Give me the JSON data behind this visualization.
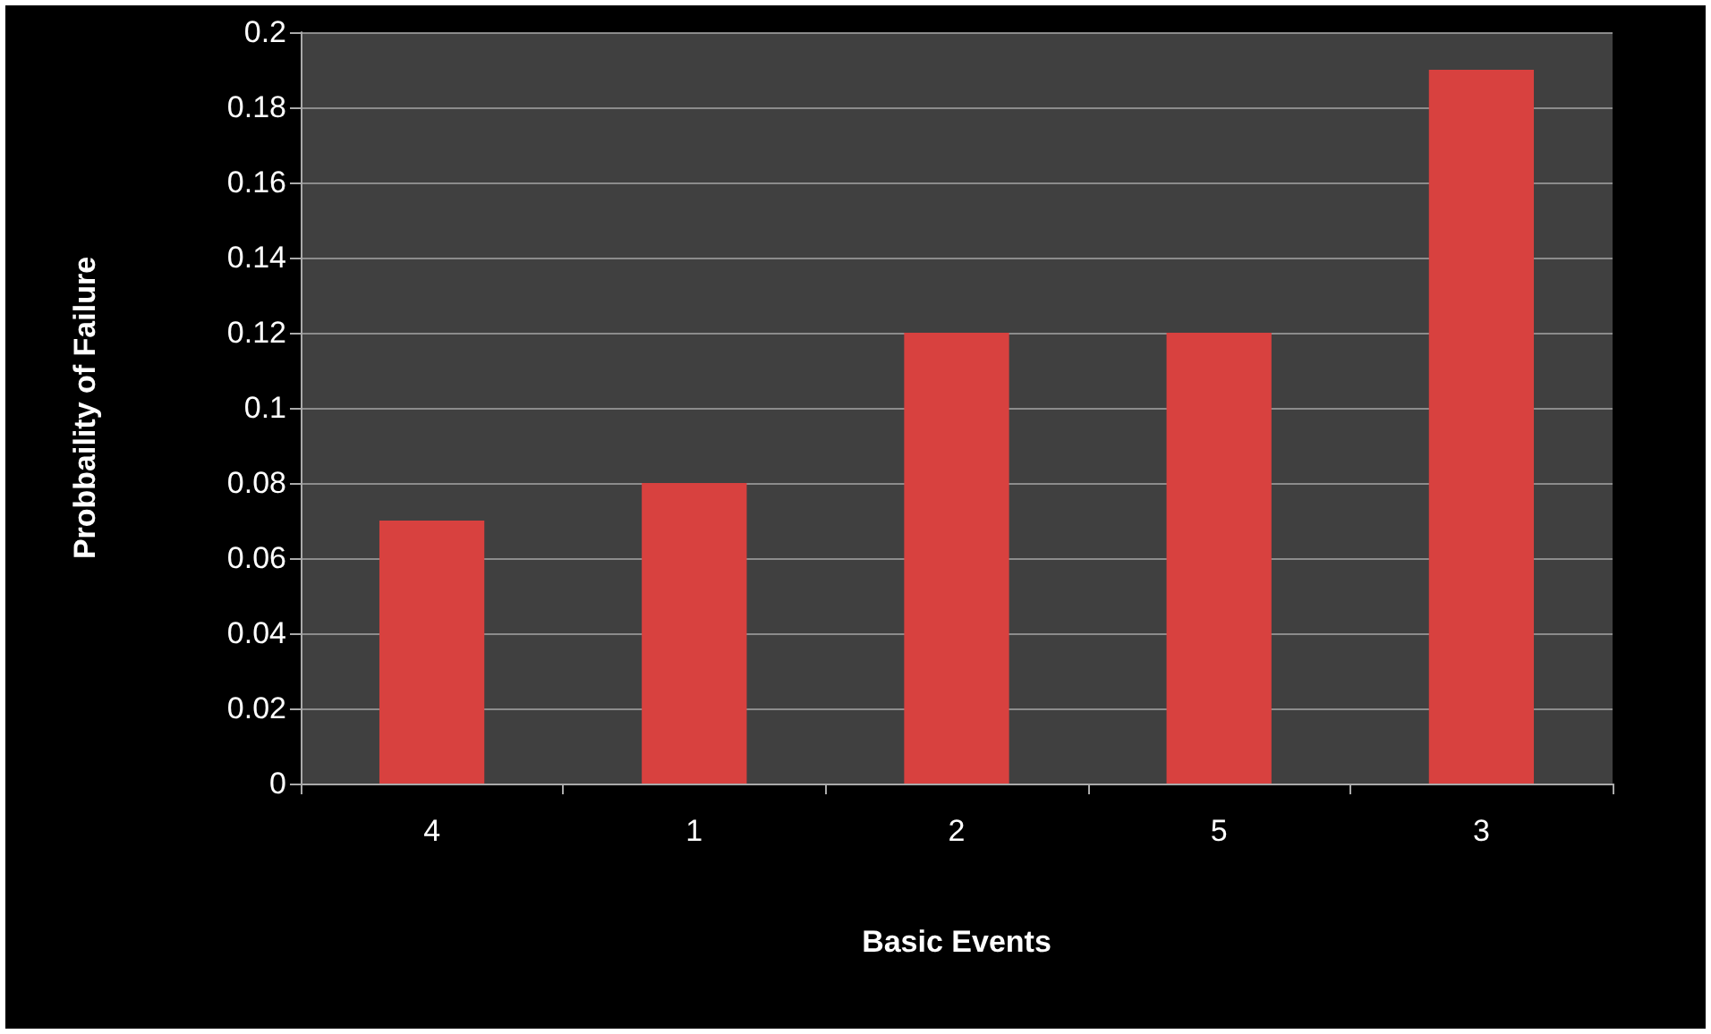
{
  "chart_data": {
    "type": "bar",
    "xlabel": "Basic Events",
    "ylabel": "Probbaility of Failure",
    "categories": [
      "4",
      "1",
      "2",
      "5",
      "3"
    ],
    "values": [
      0.07,
      0.08,
      0.12,
      0.12,
      0.19
    ],
    "color": "#d8413f",
    "ylim": [
      0,
      0.2
    ],
    "yticks": [
      0,
      0.02,
      0.04,
      0.06,
      0.08,
      0.1,
      0.12,
      0.14,
      0.16,
      0.18,
      0.2
    ],
    "grid": "y"
  }
}
